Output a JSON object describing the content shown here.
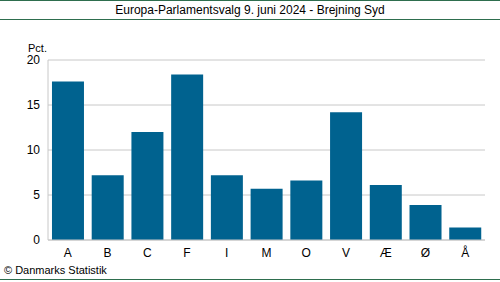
{
  "chart_data": {
    "type": "bar",
    "title": "Europa-Parlamentsvalg 9. juni 2024 - Brejning Syd",
    "ylabel": "Pct.",
    "source": "© Danmarks Statistik",
    "categories": [
      "A",
      "B",
      "C",
      "F",
      "I",
      "M",
      "O",
      "V",
      "Æ",
      "Ø",
      "Å"
    ],
    "values": [
      17.6,
      7.2,
      12.0,
      18.4,
      7.2,
      5.7,
      6.6,
      14.2,
      6.1,
      3.9,
      1.4
    ],
    "color": "#00628f",
    "ylim": [
      0,
      20
    ],
    "yticks": [
      0,
      5,
      10,
      15,
      20
    ],
    "grid": true
  }
}
